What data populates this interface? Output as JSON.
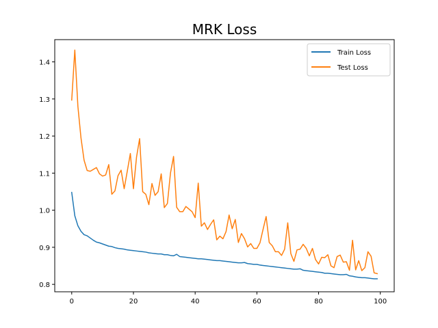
{
  "chart_data": {
    "type": "line",
    "title": "MRK Loss",
    "xlabel": "",
    "ylabel": "",
    "xlim": [
      -5.5,
      104.5
    ],
    "ylim": [
      0.78,
      1.46
    ],
    "xticks": [
      0,
      20,
      40,
      60,
      80,
      100
    ],
    "yticks": [
      0.8,
      0.9,
      1.0,
      1.1,
      1.2,
      1.3,
      1.4
    ],
    "xtick_labels": [
      "0",
      "20",
      "40",
      "60",
      "80",
      "100"
    ],
    "ytick_labels": [
      "0.8",
      "0.9",
      "1.0",
      "1.1",
      "1.2",
      "1.3",
      "1.4"
    ],
    "grid": false,
    "legend": "top-right",
    "series": [
      {
        "name": "Train Loss",
        "color": "#1f77b4",
        "values": [
          1.048,
          0.985,
          0.958,
          0.943,
          0.934,
          0.931,
          0.925,
          0.919,
          0.914,
          0.912,
          0.909,
          0.906,
          0.903,
          0.902,
          0.899,
          0.897,
          0.896,
          0.895,
          0.893,
          0.892,
          0.891,
          0.89,
          0.889,
          0.888,
          0.887,
          0.885,
          0.884,
          0.883,
          0.882,
          0.882,
          0.88,
          0.88,
          0.878,
          0.877,
          0.881,
          0.875,
          0.874,
          0.873,
          0.872,
          0.871,
          0.87,
          0.869,
          0.869,
          0.868,
          0.867,
          0.866,
          0.865,
          0.864,
          0.864,
          0.863,
          0.862,
          0.861,
          0.86,
          0.859,
          0.858,
          0.858,
          0.859,
          0.856,
          0.855,
          0.854,
          0.854,
          0.852,
          0.851,
          0.85,
          0.849,
          0.848,
          0.847,
          0.846,
          0.845,
          0.844,
          0.843,
          0.842,
          0.841,
          0.841,
          0.842,
          0.838,
          0.837,
          0.836,
          0.835,
          0.834,
          0.833,
          0.832,
          0.83,
          0.83,
          0.829,
          0.828,
          0.827,
          0.826,
          0.826,
          0.827,
          0.823,
          0.822,
          0.82,
          0.819,
          0.818,
          0.818,
          0.817,
          0.816,
          0.815,
          0.815
        ]
      },
      {
        "name": "Test Loss",
        "color": "#ff7f0e",
        "values": [
          1.297,
          1.432,
          1.28,
          1.195,
          1.135,
          1.107,
          1.105,
          1.11,
          1.115,
          1.098,
          1.092,
          1.095,
          1.123,
          1.043,
          1.052,
          1.093,
          1.108,
          1.058,
          1.105,
          1.153,
          1.058,
          1.143,
          1.193,
          1.05,
          1.043,
          1.015,
          1.072,
          1.04,
          1.05,
          1.098,
          1.007,
          1.018,
          1.1,
          1.145,
          1.008,
          0.996,
          0.996,
          1.01,
          1.003,
          0.996,
          0.98,
          1.073,
          0.957,
          0.966,
          0.948,
          0.962,
          0.974,
          0.92,
          0.93,
          0.923,
          0.942,
          0.987,
          0.95,
          0.975,
          0.913,
          0.937,
          0.923,
          0.901,
          0.91,
          0.897,
          0.897,
          0.912,
          0.948,
          0.983,
          0.913,
          0.904,
          0.888,
          0.888,
          0.878,
          0.895,
          0.966,
          0.883,
          0.862,
          0.893,
          0.895,
          0.908,
          0.897,
          0.877,
          0.897,
          0.867,
          0.855,
          0.873,
          0.872,
          0.88,
          0.85,
          0.845,
          0.875,
          0.879,
          0.86,
          0.861,
          0.838,
          0.919,
          0.839,
          0.864,
          0.837,
          0.845,
          0.888,
          0.876,
          0.831,
          0.829
        ]
      }
    ]
  }
}
